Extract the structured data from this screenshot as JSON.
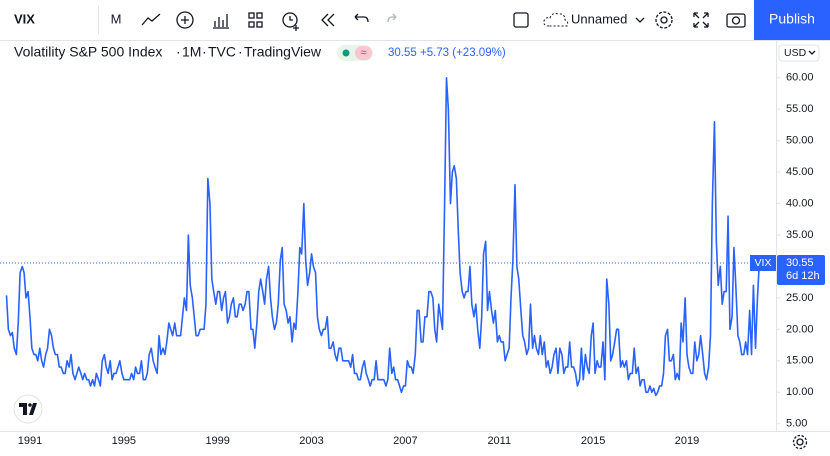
{
  "toolbar": {
    "symbol": "VIX",
    "interval": "M",
    "layout_name": "Unnamed",
    "publish": "Publish"
  },
  "legend": {
    "title": "Volatility S&P 500 Index",
    "interval": "1M",
    "exchange": "TVC",
    "source": "TradingView",
    "quote": "30.55 +5.73 (+23.09%)"
  },
  "price_scale": {
    "currency": "USD",
    "last_symbol": "VIX",
    "last_price": "30.55",
    "countdown": "6d 12h"
  },
  "chart_data": {
    "type": "line",
    "color": "#2962ff",
    "x": [
      1990.0,
      1990.08,
      1990.17,
      1990.25,
      1990.33,
      1990.42,
      1990.5,
      1990.58,
      1990.67,
      1990.75,
      1990.83,
      1990.92,
      1991.0,
      1991.08,
      1991.17,
      1991.25,
      1991.33,
      1991.42,
      1991.5,
      1991.58,
      1991.67,
      1991.75,
      1991.83,
      1991.92,
      1992.0,
      1992.08,
      1992.17,
      1992.25,
      1992.33,
      1992.42,
      1992.5,
      1992.58,
      1992.67,
      1992.75,
      1992.83,
      1992.92,
      1993.0,
      1993.08,
      1993.17,
      1993.25,
      1993.33,
      1993.42,
      1993.5,
      1993.58,
      1993.67,
      1993.75,
      1993.83,
      1993.92,
      1994.0,
      1994.08,
      1994.17,
      1994.25,
      1994.33,
      1994.42,
      1994.5,
      1994.58,
      1994.67,
      1994.75,
      1994.83,
      1994.92,
      1995.0,
      1995.08,
      1995.17,
      1995.25,
      1995.33,
      1995.42,
      1995.5,
      1995.58,
      1995.67,
      1995.75,
      1995.83,
      1995.92,
      1996.0,
      1996.08,
      1996.17,
      1996.25,
      1996.33,
      1996.42,
      1996.5,
      1996.58,
      1996.67,
      1996.75,
      1996.83,
      1996.92,
      1997.0,
      1997.08,
      1997.17,
      1997.25,
      1997.33,
      1997.42,
      1997.5,
      1997.58,
      1997.67,
      1997.75,
      1997.83,
      1997.92,
      1998.0,
      1998.08,
      1998.17,
      1998.25,
      1998.33,
      1998.42,
      1998.5,
      1998.58,
      1998.67,
      1998.75,
      1998.83,
      1998.92,
      1999.0,
      1999.08,
      1999.17,
      1999.25,
      1999.33,
      1999.42,
      1999.5,
      1999.58,
      1999.67,
      1999.75,
      1999.83,
      1999.92,
      2000.0,
      2000.08,
      2000.17,
      2000.25,
      2000.33,
      2000.42,
      2000.5,
      2000.58,
      2000.67,
      2000.75,
      2000.83,
      2000.92,
      2001.0,
      2001.08,
      2001.17,
      2001.25,
      2001.33,
      2001.42,
      2001.5,
      2001.58,
      2001.67,
      2001.75,
      2001.83,
      2001.92,
      2002.0,
      2002.08,
      2002.17,
      2002.25,
      2002.33,
      2002.42,
      2002.5,
      2002.58,
      2002.67,
      2002.75,
      2002.83,
      2002.92,
      2003.0,
      2003.08,
      2003.17,
      2003.25,
      2003.33,
      2003.42,
      2003.5,
      2003.58,
      2003.67,
      2003.75,
      2003.83,
      2003.92,
      2004.0,
      2004.08,
      2004.17,
      2004.25,
      2004.33,
      2004.42,
      2004.5,
      2004.58,
      2004.67,
      2004.75,
      2004.83,
      2004.92,
      2005.0,
      2005.08,
      2005.17,
      2005.25,
      2005.33,
      2005.42,
      2005.5,
      2005.58,
      2005.67,
      2005.75,
      2005.83,
      2005.92,
      2006.0,
      2006.08,
      2006.17,
      2006.25,
      2006.33,
      2006.42,
      2006.5,
      2006.58,
      2006.67,
      2006.75,
      2006.83,
      2006.92,
      2007.0,
      2007.08,
      2007.17,
      2007.25,
      2007.33,
      2007.42,
      2007.5,
      2007.58,
      2007.67,
      2007.75,
      2007.83,
      2007.92,
      2008.0,
      2008.08,
      2008.17,
      2008.25,
      2008.33,
      2008.42,
      2008.5,
      2008.58,
      2008.67,
      2008.75,
      2008.83,
      2008.92,
      2009.0,
      2009.08,
      2009.17,
      2009.25,
      2009.33,
      2009.42,
      2009.5,
      2009.58,
      2009.67,
      2009.75,
      2009.83,
      2009.92,
      2010.0,
      2010.08,
      2010.17,
      2010.25,
      2010.33,
      2010.42,
      2010.5,
      2010.58,
      2010.67,
      2010.75,
      2010.83,
      2010.92,
      2011.0,
      2011.08,
      2011.17,
      2011.25,
      2011.33,
      2011.42,
      2011.5,
      2011.58,
      2011.67,
      2011.75,
      2011.83,
      2011.92,
      2012.0,
      2012.08,
      2012.17,
      2012.25,
      2012.33,
      2012.42,
      2012.5,
      2012.58,
      2012.67,
      2012.75,
      2012.83,
      2012.92,
      2013.0,
      2013.08,
      2013.17,
      2013.25,
      2013.33,
      2013.42,
      2013.5,
      2013.58,
      2013.67,
      2013.75,
      2013.83,
      2013.92,
      2014.0,
      2014.08,
      2014.17,
      2014.25,
      2014.33,
      2014.42,
      2014.5,
      2014.58,
      2014.67,
      2014.75,
      2014.83,
      2014.92,
      2015.0,
      2015.08,
      2015.17,
      2015.25,
      2015.33,
      2015.42,
      2015.5,
      2015.58,
      2015.67,
      2015.75,
      2015.83,
      2015.92,
      2016.0,
      2016.08,
      2016.17,
      2016.25,
      2016.33,
      2016.42,
      2016.5,
      2016.58,
      2016.67,
      2016.75,
      2016.83,
      2016.92,
      2017.0,
      2017.08,
      2017.17,
      2017.25,
      2017.33,
      2017.42,
      2017.5,
      2017.58,
      2017.67,
      2017.75,
      2017.83,
      2017.92,
      2018.0,
      2018.08,
      2018.17,
      2018.25,
      2018.33,
      2018.42,
      2018.5,
      2018.58,
      2018.67,
      2018.75,
      2018.83,
      2018.92,
      2019.0,
      2019.08,
      2019.17,
      2019.25,
      2019.33,
      2019.42,
      2019.5,
      2019.58,
      2019.67,
      2019.75,
      2019.83,
      2019.92,
      2020.0,
      2020.08,
      2020.17,
      2020.25,
      2020.33,
      2020.42,
      2020.5,
      2020.58,
      2020.67,
      2020.75,
      2020.83,
      2020.92,
      2021.0,
      2021.08,
      2021.17,
      2021.25,
      2021.33,
      2021.42,
      2021.5,
      2021.58,
      2021.67,
      2021.75,
      2021.83,
      2021.92,
      2022.0,
      2022.08
    ],
    "values": [
      25.4,
      20,
      19,
      19.5,
      17,
      16,
      21,
      29,
      30,
      29,
      25,
      26,
      22,
      17,
      16,
      16,
      15,
      17,
      15,
      14,
      16,
      17,
      20,
      19,
      17,
      16,
      16,
      14,
      14,
      13,
      13,
      15,
      14,
      16,
      13,
      12,
      13,
      14,
      13,
      12,
      13,
      12,
      12,
      11,
      12,
      11,
      13,
      12,
      11,
      15,
      16,
      14,
      13,
      15,
      12,
      13,
      13,
      14,
      15,
      13,
      12,
      12,
      12,
      12,
      13,
      12,
      14,
      13,
      13,
      15,
      12,
      12,
      13,
      16,
      17,
      15,
      14,
      13,
      19,
      16,
      17,
      16,
      18,
      21,
      20,
      19,
      21,
      19,
      19,
      19,
      22,
      25,
      23,
      35,
      27,
      25,
      22,
      19,
      19,
      20,
      20,
      20,
      24,
      44,
      40,
      28,
      26,
      24,
      26,
      26,
      23,
      25,
      26,
      21,
      22,
      24,
      25,
      22,
      22,
      24,
      24,
      23,
      24,
      26,
      26,
      20,
      20,
      17,
      21,
      26,
      28,
      26,
      24,
      28,
      30,
      25,
      22,
      20,
      21,
      24,
      31,
      33,
      24,
      23,
      21,
      22,
      18,
      21,
      20,
      26,
      33,
      32,
      40,
      31,
      27,
      29,
      32,
      30,
      29,
      22,
      20,
      19,
      20,
      20,
      22,
      17,
      17,
      18,
      16,
      15,
      17,
      17,
      15,
      15,
      15,
      15,
      14,
      16,
      13,
      13,
      12,
      12,
      14,
      15,
      13,
      12,
      11,
      12,
      12,
      15,
      12,
      12,
      12,
      12,
      11,
      12,
      17,
      13,
      14,
      12,
      12,
      11,
      10,
      11,
      11,
      15,
      14,
      14,
      13,
      16,
      23,
      23,
      18,
      18,
      22,
      22,
      26,
      26,
      25,
      20,
      18,
      24,
      22,
      20,
      40,
      60,
      55,
      40,
      45,
      46,
      44,
      36,
      29,
      26,
      25,
      26,
      26,
      30,
      24,
      22,
      24,
      20,
      17,
      22,
      32,
      34,
      23,
      26,
      23,
      21,
      23,
      18,
      19,
      18,
      18,
      15,
      16,
      17,
      25,
      31,
      43,
      30,
      28,
      23,
      19,
      18,
      16,
      17,
      24,
      17,
      19,
      17,
      16,
      19,
      16,
      18,
      14,
      15,
      13,
      14,
      16,
      17,
      13,
      17,
      16,
      13,
      14,
      14,
      18,
      14,
      14,
      13,
      11,
      12,
      17,
      12,
      16,
      14,
      13,
      19,
      21,
      13,
      15,
      14,
      14,
      18,
      12,
      28,
      24,
      15,
      16,
      18,
      20,
      20,
      14,
      15,
      14,
      15,
      12,
      13,
      13,
      17,
      13,
      14,
      11,
      12,
      12,
      10,
      10,
      11,
      10,
      10.6,
      9.5,
      10,
      11,
      11,
      13,
      19,
      20,
      15,
      15,
      16,
      12,
      13,
      12,
      21,
      18,
      25,
      16,
      14,
      13,
      13,
      18,
      15,
      16,
      19,
      16,
      13,
      12,
      14,
      19,
      40,
      53,
      34,
      27,
      30,
      24,
      26,
      26,
      38,
      20,
      22,
      33,
      27,
      19,
      18,
      16,
      16,
      18,
      16,
      23,
      16,
      27,
      17,
      24.8,
      30.55
    ],
    "xlim": [
      1990,
      2022.75
    ],
    "xticks": [
      1991,
      1995,
      1999,
      2003,
      2007,
      2011,
      2015,
      2019
    ],
    "ylim": [
      4,
      66
    ],
    "yticks": [
      {
        "value": 5,
        "label": "5.00"
      },
      {
        "value": 10,
        "label": "10.00"
      },
      {
        "value": 15,
        "label": "15.00"
      },
      {
        "value": 20,
        "label": "20.00"
      },
      {
        "value": 25,
        "label": "25.00"
      },
      {
        "value": 30,
        "label": "30.00"
      },
      {
        "value": 35,
        "label": "35.00"
      },
      {
        "value": 40,
        "label": "40.00"
      },
      {
        "value": 45,
        "label": "45.00"
      },
      {
        "value": 50,
        "label": "50.00"
      },
      {
        "value": 55,
        "label": "55.00"
      },
      {
        "value": 60,
        "label": "60.00"
      }
    ],
    "grid": false
  }
}
